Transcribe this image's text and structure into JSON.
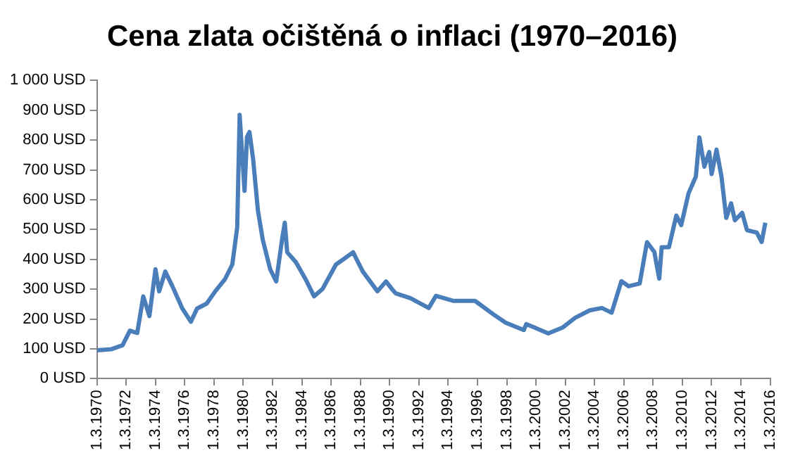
{
  "chart_data": {
    "type": "line",
    "title": "Cena zlata očištěná o inflaci (1970–2016)",
    "x": [
      "1970-03",
      "1971-03",
      "1971-12",
      "1972-06",
      "1972-12",
      "1973-05",
      "1973-10",
      "1974-03",
      "1974-06",
      "1974-11",
      "1975-05",
      "1976-01",
      "1976-08",
      "1977-01",
      "1977-09",
      "1978-04",
      "1978-12",
      "1979-06",
      "1979-10",
      "1979-12",
      "1980-04",
      "1980-06",
      "1980-08",
      "1980-11",
      "1981-03",
      "1981-07",
      "1982-01",
      "1982-06",
      "1982-11",
      "1983-01",
      "1983-03",
      "1983-10",
      "1984-06",
      "1985-01",
      "1985-08",
      "1986-07",
      "1987-01",
      "1987-09",
      "1988-05",
      "1989-05",
      "1989-12",
      "1990-05",
      "1990-08",
      "1991-08",
      "1992-11",
      "1993-05",
      "1994-07",
      "1996-01",
      "1997-05",
      "1998-02",
      "1999-05",
      "1999-07",
      "2001-01",
      "2002-01",
      "2002-11",
      "2003-11",
      "2004-09",
      "2005-05",
      "2006-01",
      "2006-07",
      "2007-04",
      "2007-10",
      "2008-04",
      "2008-08",
      "2008-10",
      "2009-04",
      "2009-10",
      "2010-02",
      "2010-08",
      "2011-02",
      "2011-05",
      "2011-09",
      "2012-01",
      "2012-03",
      "2012-07",
      "2012-11",
      "2013-03",
      "2013-07",
      "2013-10",
      "2014-04",
      "2014-08",
      "2015-04",
      "2015-08",
      "2015-11"
    ],
    "series": [
      {
        "color": "#4a7ebb",
        "values": [
          95,
          99,
          112,
          161,
          153,
          276,
          210,
          367,
          293,
          359,
          309,
          235,
          191,
          235,
          252,
          293,
          334,
          383,
          507,
          885,
          630,
          811,
          827,
          737,
          564,
          465,
          367,
          326,
          474,
          523,
          424,
          391,
          334,
          276,
          301,
          383,
          400,
          424,
          359,
          293,
          326,
          300,
          286,
          270,
          237,
          278,
          261,
          261,
          213,
          188,
          163,
          183,
          152,
          172,
          204,
          229,
          237,
          221,
          327,
          310,
          319,
          458,
          425,
          335,
          441,
          441,
          547,
          515,
          621,
          678,
          809,
          711,
          760,
          686,
          768,
          678,
          539,
          588,
          531,
          556,
          498,
          490,
          458,
          523
        ]
      }
    ],
    "xlim": [
      "1970-03-01",
      "2016-03-01"
    ],
    "xticks": [
      {
        "value": "1970-03-01",
        "label": "1.3.1970"
      },
      {
        "value": "1972-03-01",
        "label": "1.3.1972"
      },
      {
        "value": "1974-03-01",
        "label": "1.3.1974"
      },
      {
        "value": "1976-03-01",
        "label": "1.3.1976"
      },
      {
        "value": "1978-03-01",
        "label": "1.3.1978"
      },
      {
        "value": "1980-03-01",
        "label": "1.3.1980"
      },
      {
        "value": "1982-03-01",
        "label": "1.3.1982"
      },
      {
        "value": "1984-03-01",
        "label": "1.3.1984"
      },
      {
        "value": "1986-03-01",
        "label": "1.3.1986"
      },
      {
        "value": "1988-03-01",
        "label": "1.3.1988"
      },
      {
        "value": "1990-03-01",
        "label": "1.3.1990"
      },
      {
        "value": "1992-03-01",
        "label": "1.3.1992"
      },
      {
        "value": "1994-03-01",
        "label": "1.3.1994"
      },
      {
        "value": "1996-03-01",
        "label": "1.3.1996"
      },
      {
        "value": "1998-03-01",
        "label": "1.3.1998"
      },
      {
        "value": "2000-03-01",
        "label": "1.3.2000"
      },
      {
        "value": "2002-03-01",
        "label": "1.3.2002"
      },
      {
        "value": "2004-03-01",
        "label": "1.3.2004"
      },
      {
        "value": "2006-03-01",
        "label": "1.3.2006"
      },
      {
        "value": "2008-03-01",
        "label": "1.3.2008"
      },
      {
        "value": "2010-03-01",
        "label": "1.3.2010"
      },
      {
        "value": "2012-03-01",
        "label": "1.3.2012"
      },
      {
        "value": "2014-03-01",
        "label": "1.3.2014"
      },
      {
        "value": "2016-03-01",
        "label": "1.3.2016"
      }
    ],
    "ylim": [
      0,
      1000
    ],
    "yticks": [
      {
        "value": 0,
        "label": "0 USD"
      },
      {
        "value": 100,
        "label": "100 USD"
      },
      {
        "value": 200,
        "label": "200 USD"
      },
      {
        "value": 300,
        "label": "300 USD"
      },
      {
        "value": 400,
        "label": "400 USD"
      },
      {
        "value": 500,
        "label": "500 USD"
      },
      {
        "value": 600,
        "label": "600 USD"
      },
      {
        "value": 700,
        "label": "700 USD"
      },
      {
        "value": 800,
        "label": "800 USD"
      },
      {
        "value": 900,
        "label": "900 USD"
      },
      {
        "value": 1000,
        "label": "1 000 USD"
      }
    ],
    "grid": false,
    "legend": false,
    "marker": "none",
    "line_style": "solid"
  }
}
